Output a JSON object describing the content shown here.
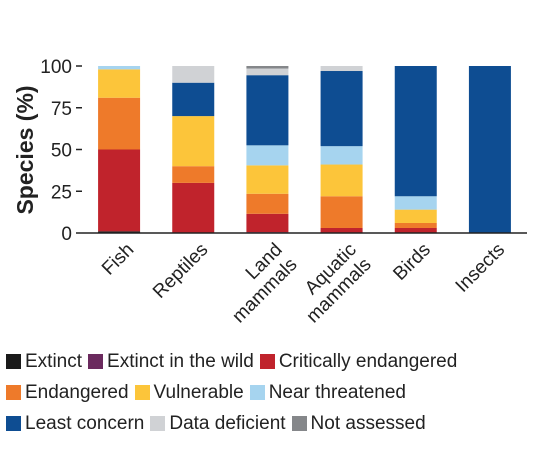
{
  "chart_data": {
    "type": "bar",
    "stacked": true,
    "ylabel": "Species (%)",
    "xlabel": "",
    "ylim": [
      0,
      100
    ],
    "yticks": [
      0,
      25,
      50,
      75,
      100
    ],
    "categories": [
      "Fish",
      "Reptiles",
      "Land mammals",
      "Aquatic mammals",
      "Birds",
      "Insects"
    ],
    "category_lines": [
      [
        "Fish"
      ],
      [
        "Reptiles"
      ],
      [
        "Land",
        "mammals"
      ],
      [
        "Aquatic",
        "mammals"
      ],
      [
        "Birds"
      ],
      [
        "Insects"
      ]
    ],
    "series": [
      {
        "name": "Extinct",
        "color": "#1a1a1a",
        "values": [
          1,
          0,
          0,
          0,
          0,
          0
        ]
      },
      {
        "name": "Extinct in the wild",
        "color": "#6b2a5e",
        "values": [
          0,
          0,
          0.5,
          0,
          0,
          0
        ]
      },
      {
        "name": "Critically endangered",
        "color": "#c0232c",
        "values": [
          49,
          30,
          11,
          3,
          3,
          0
        ]
      },
      {
        "name": "Endangered",
        "color": "#ee7a2a",
        "values": [
          31,
          10,
          12,
          19,
          3,
          0
        ]
      },
      {
        "name": "Vulnerable",
        "color": "#fcc53a",
        "values": [
          17,
          30,
          17,
          19,
          8,
          0
        ]
      },
      {
        "name": "Near threatened",
        "color": "#a6d4ef",
        "values": [
          2,
          0,
          12,
          11,
          8,
          0
        ]
      },
      {
        "name": "Least concern",
        "color": "#0e4d92",
        "values": [
          0,
          20,
          42,
          45,
          78,
          100
        ]
      },
      {
        "name": "Data deficient",
        "color": "#d0d2d5",
        "values": [
          0,
          10,
          4,
          3,
          0,
          0
        ]
      },
      {
        "name": "Not assessed",
        "color": "#85878a",
        "values": [
          0,
          0,
          1.5,
          0,
          0,
          0
        ]
      }
    ],
    "legend_position": "bottom",
    "legend_rows": [
      [
        0,
        1,
        2
      ],
      [
        3,
        4,
        5
      ],
      [
        6,
        7,
        8
      ]
    ],
    "grid": false
  }
}
